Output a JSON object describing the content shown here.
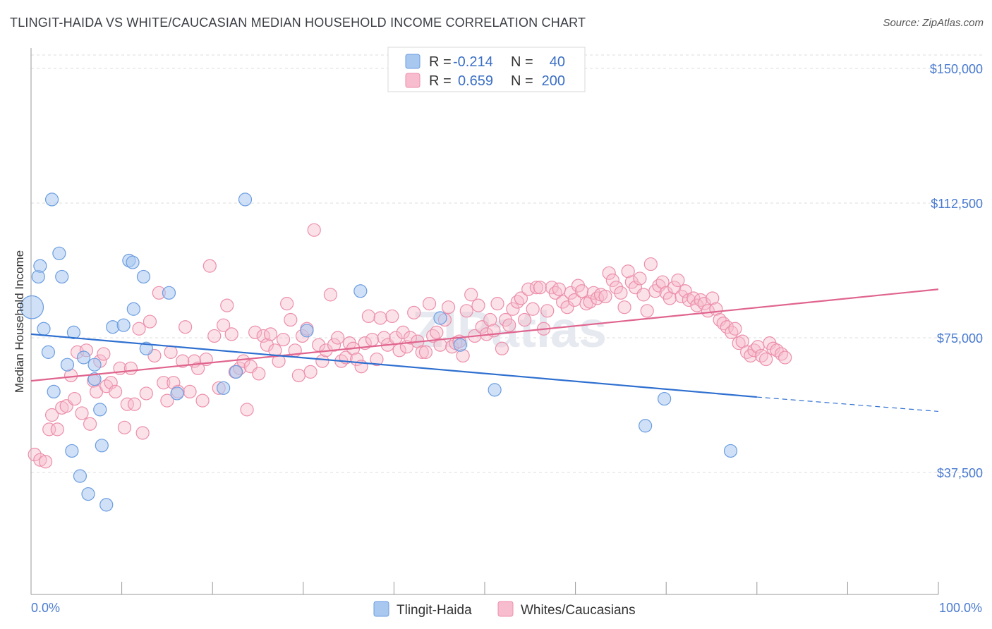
{
  "title": "TLINGIT-HAIDA VS WHITE/CAUCASIAN MEDIAN HOUSEHOLD INCOME CORRELATION CHART",
  "source": "Source: ZipAtlas.com",
  "watermark": "ZIPatlas",
  "colors": {
    "blue_fill": "#a9c8f0",
    "blue_stroke": "#6b9de0",
    "blue_line": "#2e6fd0",
    "pink_fill": "#f7bccd",
    "pink_stroke": "#ec8fab",
    "pink_line": "#e0648e",
    "tick_text": "#4a7bd0",
    "grid": "#dddddd"
  },
  "legend": {
    "row1": {
      "r_label": "R =",
      "r_value": "-0.214",
      "n_label": "N =",
      "n_value": "40"
    },
    "row2": {
      "r_label": "R =",
      "r_value": "0.659",
      "n_label": "N =",
      "n_value": "200"
    }
  },
  "chart_data": {
    "type": "scatter",
    "xlabel": "",
    "ylabel": "Median Household Income",
    "x_tick_labels": [
      "0.0%",
      "100.0%"
    ],
    "y_tick_labels": [
      "$37,500",
      "$75,000",
      "$112,500",
      "$150,000"
    ],
    "y_ticks": [
      37500,
      75000,
      112500,
      150000
    ],
    "xlim": [
      0,
      100
    ],
    "ylim": [
      0,
      155000
    ],
    "grid": true,
    "legend_position": "top-center",
    "series": [
      {
        "name": "Tlingit-Haida",
        "r": -0.214,
        "n": 40,
        "trend": {
          "x0": 0,
          "y0": 76000,
          "x1": 80,
          "y1": 58500,
          "dash_x1": 100,
          "dash_y1": 54500
        },
        "points": [
          [
            0.1,
            83500,
            1.8
          ],
          [
            0.8,
            92000,
            1
          ],
          [
            1.0,
            95000,
            1
          ],
          [
            1.4,
            77500,
            1
          ],
          [
            1.9,
            71000,
            1
          ],
          [
            2.3,
            113500,
            1
          ],
          [
            2.5,
            60000,
            1
          ],
          [
            3.1,
            98500,
            1
          ],
          [
            3.4,
            92000,
            1
          ],
          [
            4.0,
            67500,
            1
          ],
          [
            4.5,
            43500,
            1
          ],
          [
            4.7,
            76500,
            1
          ],
          [
            5.4,
            36500,
            1
          ],
          [
            5.8,
            69500,
            1
          ],
          [
            6.3,
            31500,
            1
          ],
          [
            7.0,
            67500,
            1
          ],
          [
            7.0,
            63500,
            1
          ],
          [
            7.6,
            55000,
            1
          ],
          [
            7.8,
            45000,
            1
          ],
          [
            8.3,
            28500,
            1
          ],
          [
            9.0,
            78000,
            1
          ],
          [
            10.2,
            78500,
            1
          ],
          [
            10.8,
            96500,
            1
          ],
          [
            11.2,
            96000,
            1
          ],
          [
            11.3,
            83000,
            1
          ],
          [
            12.4,
            92000,
            1
          ],
          [
            12.7,
            72000,
            1
          ],
          [
            15.2,
            87500,
            1
          ],
          [
            16.1,
            59500,
            1
          ],
          [
            21.2,
            61000,
            1
          ],
          [
            22.6,
            65500,
            1
          ],
          [
            23.6,
            113500,
            1
          ],
          [
            30.4,
            77000,
            1
          ],
          [
            36.3,
            88000,
            1
          ],
          [
            45.1,
            80500,
            1
          ],
          [
            47.3,
            73000,
            1
          ],
          [
            51.1,
            60500,
            1
          ],
          [
            67.7,
            50500,
            1
          ],
          [
            69.8,
            58000,
            1
          ],
          [
            77.1,
            43500,
            1
          ]
        ]
      },
      {
        "name": "Whites/Caucasians",
        "r": 0.659,
        "n": 200,
        "trend": {
          "x0": 0,
          "y0": 63000,
          "x1": 100,
          "y1": 88500
        },
        "points": [
          [
            0.4,
            42500
          ],
          [
            1.0,
            41000
          ],
          [
            1.6,
            40500
          ],
          [
            2.0,
            49500
          ],
          [
            2.3,
            53500
          ],
          [
            2.9,
            49500
          ],
          [
            3.4,
            55500
          ],
          [
            3.9,
            56000
          ],
          [
            4.4,
            64500
          ],
          [
            4.8,
            58000
          ],
          [
            5.1,
            71000
          ],
          [
            5.6,
            54000
          ],
          [
            6.1,
            71500
          ],
          [
            6.5,
            51000
          ],
          [
            6.9,
            63000
          ],
          [
            7.2,
            60000
          ],
          [
            7.6,
            68500
          ],
          [
            8.0,
            70500
          ],
          [
            8.3,
            61500
          ],
          [
            8.8,
            62500
          ],
          [
            9.3,
            60000
          ],
          [
            9.8,
            66500
          ],
          [
            10.3,
            50000
          ],
          [
            10.6,
            56500
          ],
          [
            11.0,
            66500
          ],
          [
            11.4,
            56500
          ],
          [
            11.9,
            77500
          ],
          [
            12.3,
            48500
          ],
          [
            12.7,
            59500
          ],
          [
            13.1,
            79500
          ],
          [
            13.6,
            70000
          ],
          [
            14.1,
            87500
          ],
          [
            14.6,
            62500
          ],
          [
            15.0,
            57500
          ],
          [
            15.4,
            71000
          ],
          [
            15.7,
            62500
          ],
          [
            16.2,
            60000
          ],
          [
            16.7,
            68500
          ],
          [
            17.0,
            78000
          ],
          [
            17.5,
            60000
          ],
          [
            18.0,
            68500
          ],
          [
            18.4,
            66500
          ],
          [
            18.9,
            57500
          ],
          [
            19.3,
            69000
          ],
          [
            19.7,
            95000
          ],
          [
            20.2,
            75500
          ],
          [
            20.7,
            61000
          ],
          [
            21.2,
            78500
          ],
          [
            21.6,
            84000
          ],
          [
            22.1,
            76000
          ],
          [
            22.5,
            65500
          ],
          [
            23.0,
            66500
          ],
          [
            23.4,
            68500
          ],
          [
            23.8,
            55000
          ],
          [
            24.2,
            67000
          ],
          [
            24.7,
            76500
          ],
          [
            25.1,
            65000
          ],
          [
            25.6,
            75500
          ],
          [
            26.0,
            73000
          ],
          [
            26.4,
            76000
          ],
          [
            26.9,
            71500
          ],
          [
            27.3,
            68500
          ],
          [
            27.8,
            74500
          ],
          [
            28.2,
            84500
          ],
          [
            28.6,
            80000
          ],
          [
            29.1,
            71500
          ],
          [
            29.5,
            64500
          ],
          [
            29.9,
            75500
          ],
          [
            30.4,
            77500
          ],
          [
            30.8,
            65500
          ],
          [
            31.2,
            105000
          ],
          [
            31.7,
            73000
          ],
          [
            32.1,
            68500
          ],
          [
            32.5,
            71500
          ],
          [
            33.0,
            87000
          ],
          [
            33.4,
            73000
          ],
          [
            33.8,
            75000
          ],
          [
            34.2,
            68500
          ],
          [
            34.7,
            69500
          ],
          [
            35.1,
            73500
          ],
          [
            35.5,
            72000
          ],
          [
            35.9,
            69000
          ],
          [
            36.4,
            67000
          ],
          [
            36.8,
            73500
          ],
          [
            37.2,
            81000
          ],
          [
            37.6,
            74500
          ],
          [
            38.1,
            69000
          ],
          [
            38.5,
            80500
          ],
          [
            38.9,
            75000
          ],
          [
            39.3,
            73000
          ],
          [
            39.8,
            81000
          ],
          [
            40.2,
            75000
          ],
          [
            40.6,
            71500
          ],
          [
            41.0,
            76500
          ],
          [
            41.4,
            72500
          ],
          [
            41.8,
            75000
          ],
          [
            42.2,
            82000
          ],
          [
            42.6,
            74000
          ],
          [
            43.1,
            71000
          ],
          [
            43.5,
            71000
          ],
          [
            43.9,
            84500
          ],
          [
            44.3,
            75500
          ],
          [
            44.7,
            76500
          ],
          [
            45.1,
            73000
          ],
          [
            45.6,
            80000
          ],
          [
            46.0,
            83500
          ],
          [
            46.4,
            72500
          ],
          [
            46.8,
            73500
          ],
          [
            47.2,
            74000
          ],
          [
            47.6,
            70000
          ],
          [
            48.0,
            82500
          ],
          [
            48.5,
            87000
          ],
          [
            48.9,
            75500
          ],
          [
            49.3,
            84000
          ],
          [
            49.7,
            78000
          ],
          [
            50.2,
            76000
          ],
          [
            50.6,
            80000
          ],
          [
            51.0,
            77000
          ],
          [
            51.4,
            84500
          ],
          [
            51.9,
            72000
          ],
          [
            52.3,
            80000
          ],
          [
            52.7,
            78500
          ],
          [
            53.1,
            83000
          ],
          [
            53.6,
            85000
          ],
          [
            54.0,
            86000
          ],
          [
            54.4,
            80000
          ],
          [
            54.8,
            88500
          ],
          [
            55.3,
            83000
          ],
          [
            55.7,
            89000
          ],
          [
            56.1,
            89000
          ],
          [
            56.5,
            77500
          ],
          [
            56.9,
            82500
          ],
          [
            57.4,
            89000
          ],
          [
            57.8,
            87500
          ],
          [
            58.2,
            88500
          ],
          [
            58.6,
            85000
          ],
          [
            59.1,
            83500
          ],
          [
            59.5,
            87500
          ],
          [
            59.9,
            85500
          ],
          [
            60.3,
            89500
          ],
          [
            60.7,
            88000
          ],
          [
            61.2,
            84500
          ],
          [
            61.6,
            85000
          ],
          [
            62.0,
            87500
          ],
          [
            62.4,
            86000
          ],
          [
            62.8,
            87000
          ],
          [
            63.3,
            86500
          ],
          [
            63.7,
            93000
          ],
          [
            64.1,
            91000
          ],
          [
            64.5,
            89000
          ],
          [
            65.0,
            87500
          ],
          [
            65.4,
            83500
          ],
          [
            65.8,
            93500
          ],
          [
            66.2,
            90500
          ],
          [
            66.6,
            89000
          ],
          [
            67.1,
            91500
          ],
          [
            67.5,
            87000
          ],
          [
            67.9,
            82500
          ],
          [
            68.3,
            95500
          ],
          [
            68.8,
            88000
          ],
          [
            69.2,
            89500
          ],
          [
            69.6,
            90500
          ],
          [
            70.0,
            87500
          ],
          [
            70.4,
            86000
          ],
          [
            70.9,
            89000
          ],
          [
            71.3,
            91000
          ],
          [
            71.7,
            86500
          ],
          [
            72.1,
            88000
          ],
          [
            72.5,
            85500
          ],
          [
            73.0,
            86000
          ],
          [
            73.4,
            84000
          ],
          [
            73.8,
            85500
          ],
          [
            74.2,
            84500
          ],
          [
            74.6,
            82500
          ],
          [
            75.1,
            86000
          ],
          [
            75.5,
            83000
          ],
          [
            75.9,
            80000
          ],
          [
            76.3,
            79000
          ],
          [
            76.7,
            78000
          ],
          [
            77.2,
            76500
          ],
          [
            77.6,
            77500
          ],
          [
            78.0,
            73500
          ],
          [
            78.4,
            74000
          ],
          [
            78.9,
            71000
          ],
          [
            79.3,
            70000
          ],
          [
            79.7,
            71500
          ],
          [
            80.1,
            72500
          ],
          [
            80.5,
            70000
          ],
          [
            81.0,
            69000
          ],
          [
            81.4,
            73500
          ],
          [
            81.8,
            72000
          ],
          [
            82.2,
            71500
          ],
          [
            82.7,
            70500
          ],
          [
            83.1,
            69500
          ]
        ]
      }
    ]
  }
}
